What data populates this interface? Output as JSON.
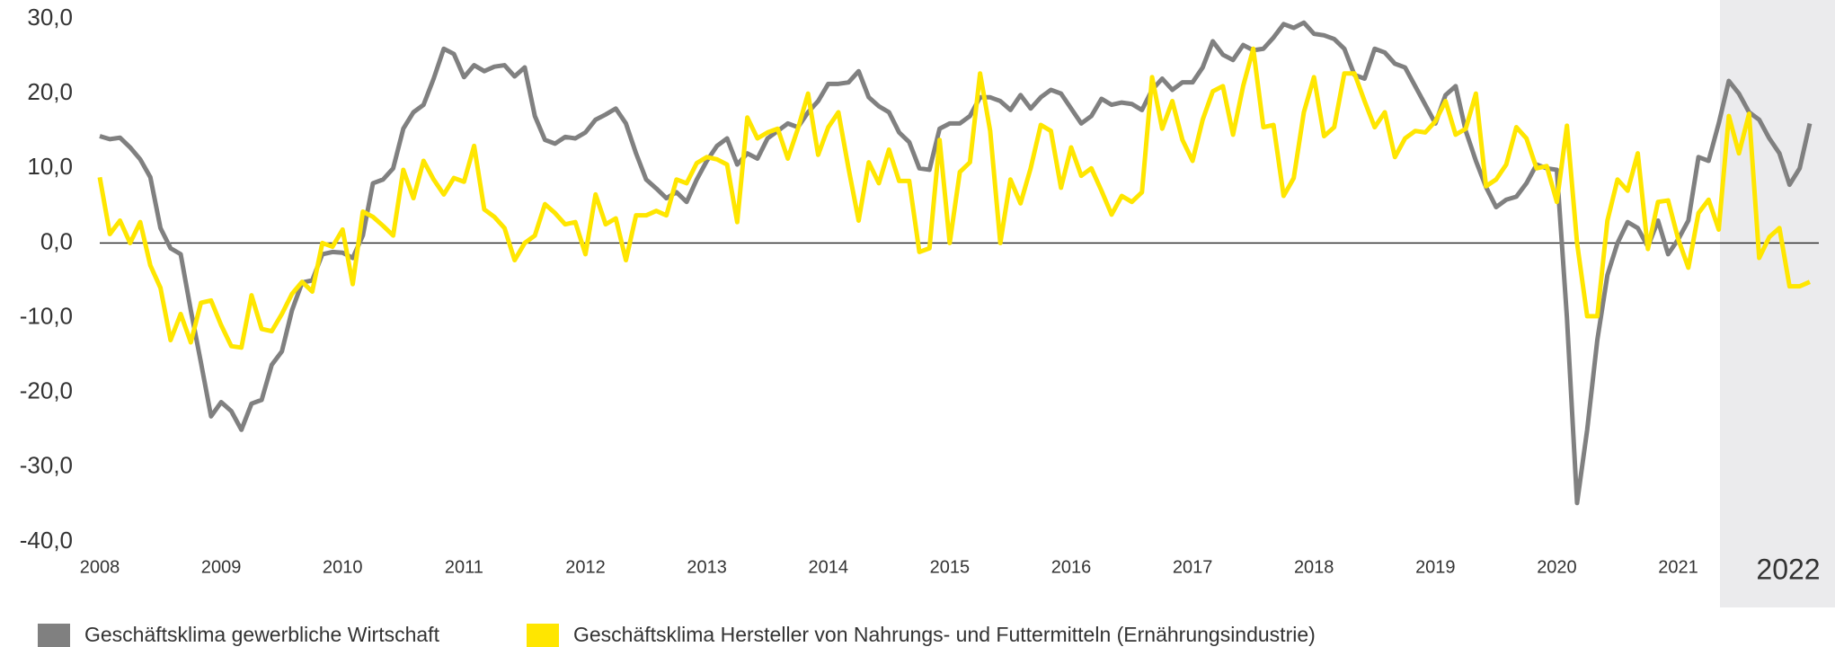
{
  "chart_data": {
    "type": "line",
    "annotation": "2022",
    "categories": [
      "2008",
      null,
      null,
      null,
      null,
      null,
      null,
      null,
      null,
      null,
      null,
      null,
      "2009",
      null,
      null,
      null,
      null,
      null,
      null,
      null,
      null,
      null,
      null,
      null,
      "2010",
      null,
      null,
      null,
      null,
      null,
      null,
      null,
      null,
      null,
      null,
      null,
      "2011",
      null,
      null,
      null,
      null,
      null,
      null,
      null,
      null,
      null,
      null,
      null,
      "2012",
      null,
      null,
      null,
      null,
      null,
      null,
      null,
      null,
      null,
      null,
      null,
      "2013",
      null,
      null,
      null,
      null,
      null,
      null,
      null,
      null,
      null,
      null,
      null,
      "2014",
      null,
      null,
      null,
      null,
      null,
      null,
      null,
      null,
      null,
      null,
      null,
      "2015",
      null,
      null,
      null,
      null,
      null,
      null,
      null,
      null,
      null,
      null,
      null,
      "2016",
      null,
      null,
      null,
      null,
      null,
      null,
      null,
      null,
      null,
      null,
      null,
      "2017",
      null,
      null,
      null,
      null,
      null,
      null,
      null,
      null,
      null,
      null,
      null,
      "2018",
      null,
      null,
      null,
      null,
      null,
      null,
      null,
      null,
      null,
      null,
      null,
      "2019",
      null,
      null,
      null,
      null,
      null,
      null,
      null,
      null,
      null,
      null,
      null,
      "2020",
      null,
      null,
      null,
      null,
      null,
      null,
      null,
      null,
      null,
      null,
      null,
      "2021",
      null,
      null,
      null,
      null,
      null,
      null,
      null,
      null,
      null,
      null,
      null,
      null,
      null
    ],
    "series": [
      {
        "name": "Geschäftsklima gewerbliche Wirtschaft",
        "color": "#808080",
        "values": [
          14.3,
          13.9,
          14.1,
          12.8,
          11.2,
          8.8,
          2,
          -0.7,
          -1.5,
          -9,
          -16,
          -23.2,
          -21.3,
          -22.5,
          -25,
          -21.5,
          -21,
          -16.3,
          -14.5,
          -9,
          -5.3,
          -5,
          -1.5,
          -1.2,
          -1.3,
          -2,
          1,
          8,
          8.5,
          10,
          15.3,
          17.5,
          18.5,
          22,
          26,
          25.3,
          22.2,
          23.8,
          23,
          23.6,
          23.8,
          22.3,
          23.5,
          17,
          13.8,
          13.3,
          14.2,
          14,
          14.8,
          16.5,
          17.2,
          18,
          16,
          12,
          8.5,
          7.3,
          6,
          6.8,
          5.5,
          8.5,
          11,
          13,
          14,
          10.5,
          12,
          11.3,
          14,
          15,
          16,
          15.5,
          17.5,
          19,
          21.3,
          21.3,
          21.5,
          23,
          19.5,
          18.3,
          17.5,
          14.8,
          13.5,
          10,
          9.8,
          15.3,
          16,
          16,
          17,
          19.5,
          19.5,
          19,
          17.8,
          19.8,
          18,
          19.5,
          20.5,
          20,
          18,
          16,
          17,
          19.3,
          18.5,
          18.8,
          18.6,
          17.8,
          20.5,
          22,
          20.5,
          21.5,
          21.5,
          23.5,
          27,
          25.2,
          24.5,
          26.5,
          25.8,
          26,
          27.5,
          29.3,
          28.8,
          29.5,
          28,
          27.8,
          27.3,
          26,
          22.5,
          22,
          26,
          25.5,
          24,
          23.5,
          21,
          18.5,
          16,
          19.8,
          21,
          15,
          11,
          7.5,
          4.8,
          5.8,
          6.2,
          8,
          10.5,
          10,
          9.8,
          -10,
          -34.8,
          -25,
          -13,
          -4.3,
          0,
          2.8,
          2,
          -0.5,
          3,
          -1.5,
          0.5,
          3,
          11.5,
          11,
          16,
          21.7,
          20,
          17.5,
          16.5,
          14,
          12,
          7.8,
          10,
          16
        ]
      },
      {
        "name": "Geschäftsklima Hersteller von Nahrungs- und Futtermitteln (Ernährungsindustrie)",
        "color": "#ffe600",
        "values": [
          8.8,
          1.2,
          3,
          0,
          2.8,
          -3,
          -6,
          -13,
          -9.5,
          -13.3,
          -8,
          -7.7,
          -11,
          -13.8,
          -14,
          -7,
          -11.5,
          -11.8,
          -9.5,
          -6.8,
          -5.2,
          -6.5,
          0,
          -0.5,
          1.8,
          -5.5,
          4.2,
          3.5,
          2.3,
          1,
          9.8,
          6,
          11,
          8.5,
          6.5,
          8.7,
          8.2,
          13,
          4.5,
          3.5,
          2,
          -2.3,
          0,
          1,
          5.2,
          4,
          2.5,
          2.8,
          -1.5,
          6.5,
          2.5,
          3.3,
          -2.3,
          3.7,
          3.7,
          4.3,
          3.7,
          8.5,
          8,
          10.7,
          11.5,
          11.2,
          10.5,
          2.8,
          16.8,
          14,
          14.8,
          15.3,
          11.3,
          15.3,
          20,
          11.8,
          15.5,
          17.5,
          10,
          3,
          10.8,
          8,
          12.5,
          8.3,
          8.3,
          -1.2,
          -0.7,
          13.8,
          0,
          9.5,
          10.8,
          22.7,
          15,
          0,
          8.5,
          5.3,
          10,
          15.8,
          15,
          7.4,
          12.8,
          9,
          10,
          7,
          3.8,
          6.3,
          5.5,
          6.8,
          22.2,
          15.3,
          19,
          13.8,
          11,
          16.5,
          20.3,
          21,
          14.5,
          21,
          26,
          15.5,
          15.8,
          6.3,
          8.7,
          17.5,
          22.2,
          14.3,
          15.5,
          22.7,
          22.7,
          19,
          15.5,
          17.5,
          11.5,
          14,
          15,
          14.8,
          16.3,
          19,
          14.5,
          15.3,
          20,
          7.6,
          8.5,
          10.5,
          15.5,
          14,
          10,
          10.3,
          5.5,
          15.7,
          0,
          -9.8,
          -9.8,
          3,
          8.5,
          7,
          12,
          -0.8,
          5.5,
          5.7,
          0.5,
          -3.3,
          4,
          5.8,
          1.8,
          17,
          12,
          17.3,
          -2,
          0.8,
          2,
          -5.8,
          -5.8,
          -5.2
        ]
      }
    ],
    "ylim": [
      -40,
      30
    ],
    "yticks": [
      {
        "value": -40,
        "label": "-40,0"
      },
      {
        "value": -30,
        "label": "-30,0"
      },
      {
        "value": -20,
        "label": "-20,0"
      },
      {
        "value": -10,
        "label": "-10,0"
      },
      {
        "value": 0,
        "label": "0,0"
      },
      {
        "value": 10,
        "label": "10,0"
      },
      {
        "value": 20,
        "label": "20,0"
      },
      {
        "value": 30,
        "label": "30,0"
      }
    ],
    "grid": false,
    "legend": "bottom"
  }
}
